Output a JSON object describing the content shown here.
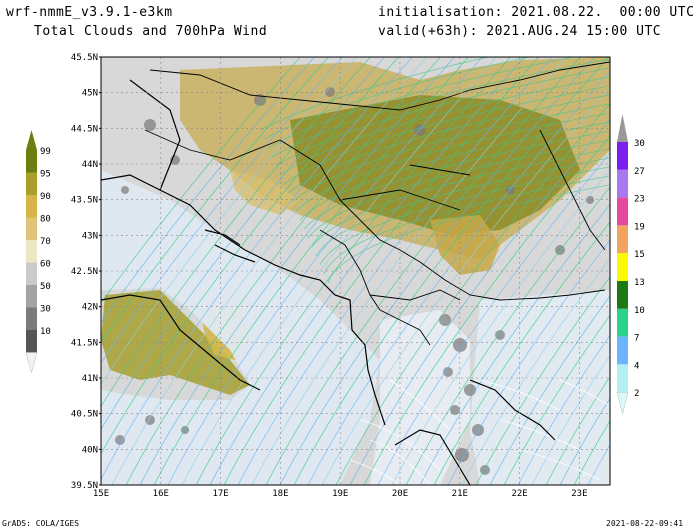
{
  "header": {
    "model": "wrf-nmmE_v3.9.1-e3km",
    "product": "Total Clouds and 700hPa Wind",
    "init": "initialisation: 2021.08.22.  00:00 UTC",
    "valid": "valid(+63h): 2021.AUG.24 15:00 UTC"
  },
  "footer": {
    "left": "GrADS: COLA/IGES",
    "right": "2021-08-22-09:41"
  },
  "map": {
    "lat_labels": [
      "45.5N",
      "45N",
      "44.5N",
      "44N",
      "43.5N",
      "43N",
      "42.5N",
      "42N",
      "41.5N",
      "41N",
      "40.5N",
      "40N",
      "39.5N"
    ],
    "lon_labels": [
      "15E",
      "16E",
      "17E",
      "18E",
      "19E",
      "20E",
      "21E",
      "22E",
      "23E"
    ]
  },
  "cloud_legend": {
    "labels": [
      "99",
      "95",
      "90",
      "80",
      "70",
      "60",
      "50",
      "30",
      "10"
    ],
    "colors": [
      "#6e7d10",
      "#a8a028",
      "#d7b445",
      "#e0c47a",
      "#ece8c6",
      "#cacaca",
      "#a3a3a3",
      "#7b7b7b",
      "#555555"
    ],
    "top_arrow": "#6e7d10",
    "bottom_arrow": "#f2f2f2"
  },
  "wind_legend": {
    "labels": [
      "30",
      "27",
      "23",
      "19",
      "15",
      "13",
      "10",
      "7",
      "4",
      "2"
    ],
    "colors": [
      "#7c1ef0",
      "#a878f0",
      "#e64aa0",
      "#f0a460",
      "#fafa00",
      "#1e7814",
      "#2ad28c",
      "#6cb4ff",
      "#b4f0f0"
    ],
    "top_arrow": "#999999",
    "bottom_arrow": "#dcf8f8"
  }
}
